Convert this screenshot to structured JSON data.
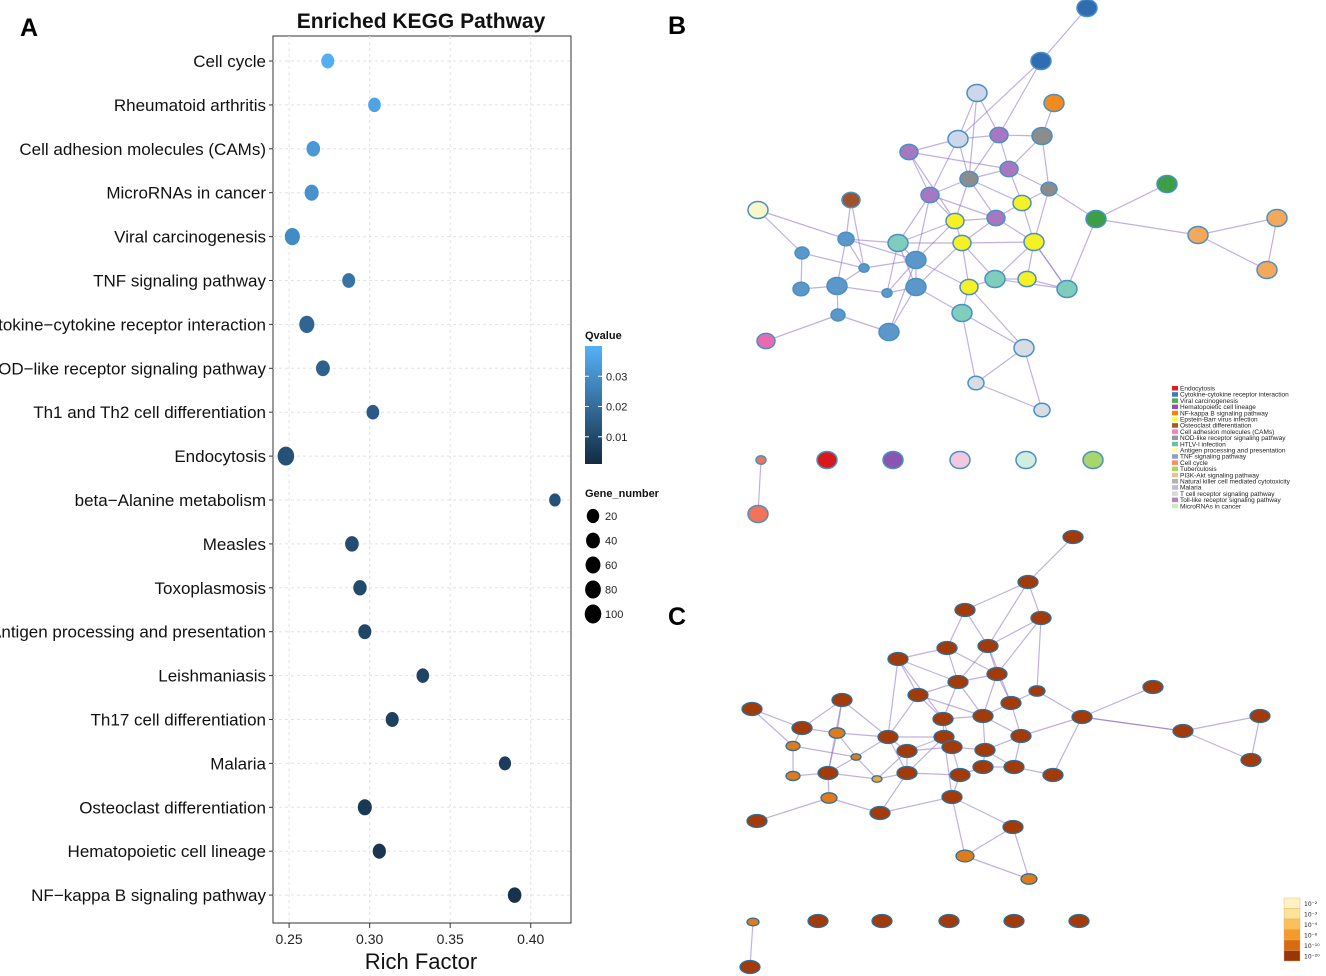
{
  "panels": {
    "a": "A",
    "b": "B",
    "c": "C"
  },
  "colors": {
    "low_q": "#132b43",
    "high_q": "#56b1f7",
    "edge": "#9b7fc7",
    "node_c": "#a33a0a"
  },
  "chart_data": {
    "type": "scatter",
    "title": "Enriched KEGG Pathway",
    "xlabel": "Rich Factor",
    "ylabel": "",
    "xlim": [
      0.24,
      0.425
    ],
    "xticks": [
      0.25,
      0.3,
      0.35,
      0.4
    ],
    "xtick_labels": [
      "0.25",
      "0.30",
      "0.35",
      "0.40"
    ],
    "points": [
      {
        "pathway": "Cell cycle",
        "rich": 0.274,
        "q": 0.039,
        "genes": 28
      },
      {
        "pathway": "Rheumatoid arthritis",
        "rich": 0.303,
        "q": 0.036,
        "genes": 22
      },
      {
        "pathway": "Cell adhesion molecules (CAMs)",
        "rich": 0.265,
        "q": 0.033,
        "genes": 36
      },
      {
        "pathway": "MicroRNAs in cancer",
        "rich": 0.264,
        "q": 0.031,
        "genes": 44
      },
      {
        "pathway": "Viral carcinogenesis",
        "rich": 0.252,
        "q": 0.029,
        "genes": 65
      },
      {
        "pathway": "TNF signaling pathway",
        "rich": 0.287,
        "q": 0.022,
        "genes": 26
      },
      {
        "pathway": "Cytokine−cytokine receptor interaction",
        "rich": 0.261,
        "q": 0.018,
        "genes": 65
      },
      {
        "pathway": "NOD−like receptor signaling pathway",
        "rich": 0.271,
        "q": 0.017,
        "genes": 40
      },
      {
        "pathway": "Th1 and Th2 cell differentiation",
        "rich": 0.302,
        "q": 0.015,
        "genes": 24
      },
      {
        "pathway": "Endocytosis",
        "rich": 0.248,
        "q": 0.012,
        "genes": 100
      },
      {
        "pathway": "beta−Alanine metabolism",
        "rich": 0.415,
        "q": 0.012,
        "genes": 10
      },
      {
        "pathway": "Measles",
        "rich": 0.289,
        "q": 0.011,
        "genes": 36
      },
      {
        "pathway": "Toxoplasmosis",
        "rich": 0.294,
        "q": 0.01,
        "genes": 33
      },
      {
        "pathway": "Antigen processing and presentation",
        "rich": 0.297,
        "q": 0.009,
        "genes": 28
      },
      {
        "pathway": "Leishmaniasis",
        "rich": 0.333,
        "q": 0.008,
        "genes": 22
      },
      {
        "pathway": "Th17 cell differentiation",
        "rich": 0.314,
        "q": 0.007,
        "genes": 28
      },
      {
        "pathway": "Malaria",
        "rich": 0.384,
        "q": 0.006,
        "genes": 17
      },
      {
        "pathway": "Osteoclast differentiation",
        "rich": 0.297,
        "q": 0.005,
        "genes": 43
      },
      {
        "pathway": "Hematopoietic cell lineage",
        "rich": 0.306,
        "q": 0.004,
        "genes": 30
      },
      {
        "pathway": "NF−kappa B signaling pathway",
        "rich": 0.39,
        "q": 0.003,
        "genes": 35
      }
    ],
    "color_legend": {
      "title": "Qvalue",
      "ticks": [
        "0.03",
        "0.02",
        "0.01"
      ],
      "tick_values": [
        0.03,
        0.02,
        0.01
      ],
      "range": [
        0.001,
        0.04
      ]
    },
    "size_legend": {
      "title": "Gene_number",
      "values": [
        20,
        40,
        60,
        80,
        100
      ],
      "labels": [
        "20",
        "40",
        "60",
        "80",
        "100"
      ]
    }
  },
  "network_legend_b": [
    {
      "label": "Endocytosis",
      "color": "#e41a1c"
    },
    {
      "label": "Cytokine-cytokine receptor interaction",
      "color": "#377eb8"
    },
    {
      "label": "Viral carcinogenesis",
      "color": "#4daf4a"
    },
    {
      "label": "Hematopoietic cell lineage",
      "color": "#984ea3"
    },
    {
      "label": "NF-kappa B signaling pathway",
      "color": "#ff7f00"
    },
    {
      "label": "Epstein-Barr virus infection",
      "color": "#ffff33"
    },
    {
      "label": "Osteoclast differentiation",
      "color": "#a65628"
    },
    {
      "label": "Cell adhesion molecules (CAMs)",
      "color": "#f781bf"
    },
    {
      "label": "NOD-like receptor signaling pathway",
      "color": "#999999"
    },
    {
      "label": "HTLV-I infection",
      "color": "#66c2a5"
    },
    {
      "label": "Antigen processing and presentation",
      "color": "#ffffb3"
    },
    {
      "label": "TNF signaling pathway",
      "color": "#8da0cb"
    },
    {
      "label": "Cell cycle",
      "color": "#fc8d62"
    },
    {
      "label": "Tuberculosis",
      "color": "#a6d854"
    },
    {
      "label": "PI3K-Akt signaling pathway",
      "color": "#e5c494"
    },
    {
      "label": "Natural killer cell mediated cytotoxicity",
      "color": "#b3b3b3"
    },
    {
      "label": "Malaria",
      "color": "#bebada"
    },
    {
      "label": "T cell receptor signaling pathway",
      "color": "#d9d9d9"
    },
    {
      "label": "Toll-like receptor signaling pathway",
      "color": "#bc80bd"
    },
    {
      "label": "MicroRNAs in cancer",
      "color": "#ccebc5"
    }
  ],
  "network_legend_c": {
    "labels": [
      "10⁻²",
      "10⁻³",
      "10⁻⁴",
      "10⁻⁶",
      "10⁻¹⁰",
      "10⁻²⁰"
    ],
    "colors": [
      "#fff3c4",
      "#fde29a",
      "#fbbf5b",
      "#f39a2c",
      "#d96a12",
      "#9c3506"
    ]
  }
}
